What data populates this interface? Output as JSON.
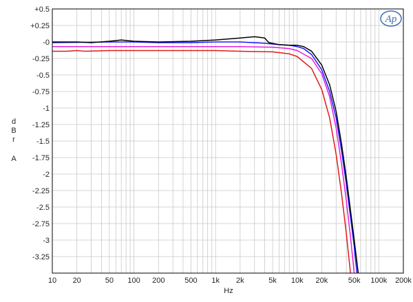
{
  "chart_data": {
    "type": "line",
    "xscale": "log",
    "xlabel": "Hz",
    "ylabel": [
      "d",
      "B",
      "r",
      "",
      "A"
    ],
    "xlim": [
      10,
      200000
    ],
    "ylim": [
      -3.5,
      0.5
    ],
    "x_ticks": [
      {
        "v": 10,
        "label": "10"
      },
      {
        "v": 20,
        "label": "20"
      },
      {
        "v": 50,
        "label": "50"
      },
      {
        "v": 100,
        "label": "100"
      },
      {
        "v": 200,
        "label": "200"
      },
      {
        "v": 500,
        "label": "500"
      },
      {
        "v": 1000,
        "label": "1k"
      },
      {
        "v": 2000,
        "label": "2k"
      },
      {
        "v": 5000,
        "label": "5k"
      },
      {
        "v": 10000,
        "label": "10k"
      },
      {
        "v": 20000,
        "label": "20k"
      },
      {
        "v": 50000,
        "label": "50k"
      },
      {
        "v": 100000,
        "label": "100k"
      },
      {
        "v": 200000,
        "label": "200k"
      }
    ],
    "y_ticks": [
      {
        "v": 0.5,
        "label": "+0.5"
      },
      {
        "v": 0.25,
        "label": "+0.25"
      },
      {
        "v": 0,
        "label": "-0"
      },
      {
        "v": -0.25,
        "label": "-0.25"
      },
      {
        "v": -0.5,
        "label": "-0.5"
      },
      {
        "v": -0.75,
        "label": "-0.75"
      },
      {
        "v": -1,
        "label": "-1"
      },
      {
        "v": -1.25,
        "label": "-1.25"
      },
      {
        "v": -1.5,
        "label": "-1.5"
      },
      {
        "v": -1.75,
        "label": "-1.75"
      },
      {
        "v": -2,
        "label": "-2"
      },
      {
        "v": -2.25,
        "label": "-2.25"
      },
      {
        "v": -2.5,
        "label": "-2.5"
      },
      {
        "v": -2.75,
        "label": "-2.75"
      },
      {
        "v": -3,
        "label": "-3"
      },
      {
        "v": -3.25,
        "label": "-3.25"
      }
    ],
    "grid": true,
    "logo": "Ap",
    "series": [
      {
        "color": "#000000",
        "points": [
          [
            10,
            0
          ],
          [
            20,
            0
          ],
          [
            30,
            -0.01
          ],
          [
            50,
            0.01
          ],
          [
            70,
            0.03
          ],
          [
            100,
            0.01
          ],
          [
            200,
            0
          ],
          [
            500,
            0.01
          ],
          [
            1000,
            0.03
          ],
          [
            2000,
            0.06
          ],
          [
            3000,
            0.08
          ],
          [
            4000,
            0.06
          ],
          [
            4500,
            -0.01
          ],
          [
            6000,
            -0.04
          ],
          [
            8000,
            -0.05
          ],
          [
            10000,
            -0.05
          ],
          [
            12000,
            -0.07
          ],
          [
            15000,
            -0.14
          ],
          [
            20000,
            -0.35
          ],
          [
            25000,
            -0.65
          ],
          [
            30000,
            -1.05
          ],
          [
            35000,
            -1.55
          ],
          [
            40000,
            -2.05
          ],
          [
            45000,
            -2.55
          ],
          [
            50000,
            -3.0
          ],
          [
            56000,
            -3.5
          ]
        ]
      },
      {
        "color": "#1a1aff",
        "points": [
          [
            10,
            -0.01
          ],
          [
            50,
            0
          ],
          [
            100,
            0
          ],
          [
            200,
            -0.01
          ],
          [
            500,
            -0.01
          ],
          [
            1000,
            0
          ],
          [
            2000,
            0
          ],
          [
            4000,
            -0.02
          ],
          [
            6000,
            -0.04
          ],
          [
            8000,
            -0.05
          ],
          [
            10000,
            -0.07
          ],
          [
            12000,
            -0.1
          ],
          [
            15000,
            -0.19
          ],
          [
            20000,
            -0.42
          ],
          [
            25000,
            -0.75
          ],
          [
            30000,
            -1.15
          ],
          [
            35000,
            -1.65
          ],
          [
            40000,
            -2.15
          ],
          [
            45000,
            -2.65
          ],
          [
            50000,
            -3.1
          ],
          [
            54000,
            -3.5
          ]
        ]
      },
      {
        "color": "#e020e0",
        "points": [
          [
            10,
            -0.07
          ],
          [
            50,
            -0.07
          ],
          [
            100,
            -0.07
          ],
          [
            500,
            -0.07
          ],
          [
            1000,
            -0.07
          ],
          [
            2000,
            -0.07
          ],
          [
            5000,
            -0.08
          ],
          [
            8000,
            -0.1
          ],
          [
            10000,
            -0.13
          ],
          [
            15000,
            -0.25
          ],
          [
            20000,
            -0.48
          ],
          [
            25000,
            -0.83
          ],
          [
            30000,
            -1.3
          ],
          [
            35000,
            -1.85
          ],
          [
            40000,
            -2.4
          ],
          [
            45000,
            -2.95
          ],
          [
            50000,
            -3.5
          ]
        ]
      },
      {
        "color": "#e01a1a",
        "points": [
          [
            10,
            -0.14
          ],
          [
            15,
            -0.14
          ],
          [
            20,
            -0.13
          ],
          [
            25,
            -0.14
          ],
          [
            50,
            -0.13
          ],
          [
            100,
            -0.13
          ],
          [
            500,
            -0.13
          ],
          [
            1000,
            -0.13
          ],
          [
            2000,
            -0.14
          ],
          [
            5000,
            -0.15
          ],
          [
            8000,
            -0.18
          ],
          [
            10000,
            -0.22
          ],
          [
            15000,
            -0.4
          ],
          [
            20000,
            -0.72
          ],
          [
            25000,
            -1.15
          ],
          [
            30000,
            -1.7
          ],
          [
            35000,
            -2.3
          ],
          [
            40000,
            -2.9
          ],
          [
            45000,
            -3.5
          ]
        ]
      }
    ]
  }
}
